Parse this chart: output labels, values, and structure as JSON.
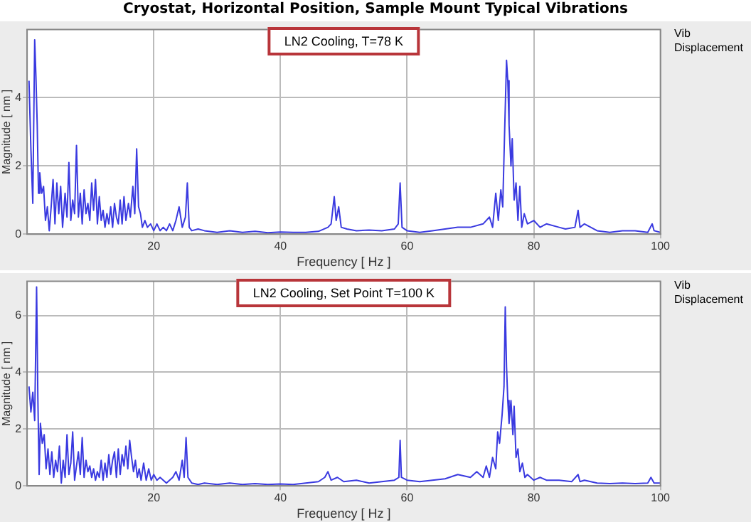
{
  "chart_data": [
    {
      "type": "line",
      "title": "Cryostat, Horizontal Position, Sample Mount Typical Vibrations",
      "subtitle": "LN2 Cooling, T=78 K",
      "xlabel": "Frequency [ Hz ]",
      "ylabel": "Magnitude [ nm ]",
      "annotations": [
        "Vib Displacement"
      ],
      "color": "#3a3ae0",
      "marker": "none",
      "grid": true,
      "legend": false,
      "xlim": [
        0,
        100
      ],
      "xticks": [
        20,
        40,
        60,
        80,
        100
      ],
      "ylim": [
        0,
        6
      ],
      "yticks": [
        0,
        2,
        4
      ],
      "x": [
        0.3,
        0.6,
        0.9,
        1.2,
        1.4,
        1.6,
        1.8,
        2.0,
        2.3,
        2.6,
        2.9,
        3.2,
        3.5,
        3.8,
        4.1,
        4.4,
        4.7,
        5.0,
        5.3,
        5.6,
        6.0,
        6.3,
        6.6,
        6.9,
        7.2,
        7.5,
        7.8,
        8.1,
        8.4,
        8.7,
        9.0,
        9.3,
        9.6,
        9.9,
        10.2,
        10.5,
        10.8,
        11.1,
        11.4,
        11.7,
        12.0,
        12.3,
        12.6,
        12.9,
        13.2,
        13.5,
        13.8,
        14.1,
        14.4,
        14.7,
        15.0,
        15.3,
        15.6,
        16.0,
        16.3,
        16.7,
        17.0,
        17.3,
        17.6,
        17.9,
        18.2,
        18.6,
        19.0,
        19.5,
        20,
        20.5,
        21,
        21.5,
        22,
        22.5,
        23,
        23.5,
        24,
        24.5,
        25.0,
        25.3,
        25.6,
        26,
        27,
        28,
        30,
        32,
        34,
        36,
        38,
        40,
        42,
        44,
        46,
        47.5,
        48,
        48.5,
        48.8,
        49.2,
        49.6,
        50.5,
        52,
        54,
        56,
        58,
        58.6,
        58.9,
        59.2,
        60,
        62,
        64,
        66,
        68,
        70,
        72,
        73,
        73.5,
        74,
        74.4,
        74.8,
        75.1,
        75.4,
        75.7,
        75.9,
        76.1,
        76.4,
        76.6,
        76.9,
        77.2,
        77.5,
        77.8,
        78.1,
        78.5,
        79,
        80,
        81,
        82,
        84,
        85,
        86.5,
        87,
        87.3,
        88,
        90,
        92,
        94,
        96,
        98,
        98.7,
        99,
        100
      ],
      "values": [
        4.5,
        2.5,
        0.9,
        5.7,
        4.6,
        3.2,
        1.2,
        1.8,
        1.2,
        1.4,
        0.4,
        0.8,
        0.1,
        0.8,
        1.6,
        0.3,
        1.5,
        0.6,
        1.4,
        0.2,
        1.2,
        0.5,
        2.1,
        0.4,
        1.0,
        0.6,
        2.6,
        0.5,
        1.2,
        0.3,
        1.3,
        0.6,
        0.9,
        0.4,
        1.5,
        0.7,
        1.6,
        0.3,
        1.1,
        0.4,
        0.7,
        0.2,
        0.6,
        0.3,
        0.8,
        0.2,
        0.9,
        0.5,
        0.3,
        1.0,
        0.3,
        1.1,
        0.4,
        0.9,
        0.5,
        1.4,
        0.6,
        2.5,
        0.8,
        0.6,
        0.2,
        0.4,
        0.2,
        0.3,
        0.1,
        0.3,
        0.1,
        0.2,
        0.1,
        0.3,
        0.1,
        0.4,
        0.8,
        0.2,
        0.5,
        1.5,
        0.2,
        0.1,
        0.15,
        0.1,
        0.05,
        0.1,
        0.05,
        0.08,
        0.04,
        0.06,
        0.05,
        0.05,
        0.08,
        0.2,
        0.3,
        1.1,
        0.4,
        0.8,
        0.2,
        0.15,
        0.1,
        0.12,
        0.1,
        0.15,
        0.3,
        1.5,
        0.2,
        0.1,
        0.05,
        0.1,
        0.15,
        0.2,
        0.2,
        0.3,
        0.5,
        0.2,
        1.2,
        0.4,
        1.3,
        0.8,
        3.0,
        5.1,
        4.5,
        3.2,
        2.0,
        2.8,
        1.0,
        1.5,
        0.4,
        1.4,
        0.2,
        0.6,
        0.3,
        0.4,
        0.2,
        0.3,
        0.2,
        0.15,
        0.2,
        0.7,
        0.2,
        0.3,
        0.1,
        0.05,
        0.1,
        0.1,
        0.05,
        0.3,
        0.1,
        0.05
      ]
    },
    {
      "type": "line",
      "subtitle": "LN2 Cooling, Set Point T=100 K",
      "xlabel": "Frequency [ Hz ]",
      "ylabel": "Magnitude [ nm ]",
      "annotations": [
        "Vib Displacement"
      ],
      "color": "#3a3ae0",
      "marker": "none",
      "grid": true,
      "legend": false,
      "xlim": [
        0,
        100
      ],
      "xticks": [
        20,
        40,
        60,
        80,
        100
      ],
      "ylim": [
        0,
        7.2
      ],
      "yticks": [
        0,
        2,
        4,
        6
      ],
      "x": [
        0.3,
        0.6,
        0.9,
        1.2,
        1.5,
        1.7,
        1.9,
        2.1,
        2.4,
        2.7,
        3.0,
        3.3,
        3.6,
        3.9,
        4.2,
        4.5,
        4.8,
        5.1,
        5.4,
        5.7,
        6.0,
        6.3,
        6.6,
        6.9,
        7.2,
        7.5,
        7.8,
        8.1,
        8.4,
        8.7,
        9.0,
        9.3,
        9.6,
        9.9,
        10.2,
        10.5,
        10.8,
        11.1,
        11.4,
        11.7,
        12.0,
        12.3,
        12.6,
        12.9,
        13.2,
        13.5,
        13.8,
        14.1,
        14.4,
        14.7,
        15.0,
        15.3,
        15.6,
        15.9,
        16.2,
        16.5,
        16.8,
        17.1,
        17.4,
        17.7,
        18.0,
        18.4,
        18.8,
        19.2,
        19.6,
        20,
        20.5,
        21,
        22,
        23,
        23.5,
        24,
        24.5,
        24.8,
        25.1,
        25.4,
        26,
        27,
        28,
        30,
        32,
        34,
        36,
        38,
        40,
        42,
        44,
        46,
        47,
        47.5,
        48,
        49,
        50,
        52,
        54,
        56,
        58,
        58.7,
        58.9,
        59.1,
        60,
        62,
        64,
        66,
        68,
        70,
        71,
        72,
        72.5,
        73,
        73.5,
        74,
        74.3,
        74.6,
        75,
        75.3,
        75.5,
        75.7,
        75.9,
        76.1,
        76.4,
        76.7,
        76.9,
        77.2,
        77.5,
        77.8,
        78.2,
        78.6,
        79,
        80,
        81,
        82,
        84,
        86,
        87,
        87.3,
        88,
        90,
        92,
        94,
        96,
        98,
        98.5,
        99,
        100
      ],
      "values": [
        3.5,
        2.6,
        3.3,
        2.3,
        7.0,
        3.1,
        0.4,
        2.2,
        1.5,
        1.8,
        0.6,
        1.3,
        0.4,
        1.2,
        0.3,
        0.9,
        0.5,
        1.4,
        0.1,
        0.9,
        0.3,
        1.8,
        0.4,
        0.8,
        1.9,
        0.2,
        0.7,
        1.2,
        0.4,
        1.7,
        0.3,
        0.9,
        0.5,
        0.7,
        0.3,
        0.6,
        0.2,
        0.5,
        0.3,
        0.9,
        0.2,
        0.8,
        0.3,
        1.1,
        0.4,
        0.9,
        1.2,
        0.3,
        1.3,
        0.4,
        1.1,
        0.7,
        1.4,
        0.6,
        1.6,
        1.0,
        0.5,
        0.9,
        0.3,
        0.6,
        0.2,
        0.8,
        0.2,
        0.6,
        0.2,
        0.4,
        0.2,
        0.3,
        0.1,
        0.3,
        0.5,
        0.2,
        0.9,
        0.3,
        1.7,
        0.3,
        0.1,
        0.05,
        0.1,
        0.05,
        0.1,
        0.05,
        0.08,
        0.05,
        0.07,
        0.05,
        0.1,
        0.15,
        0.3,
        0.5,
        0.2,
        0.3,
        0.15,
        0.2,
        0.1,
        0.15,
        0.2,
        0.3,
        1.6,
        0.3,
        0.2,
        0.15,
        0.2,
        0.25,
        0.4,
        0.3,
        0.5,
        0.3,
        0.7,
        0.3,
        1.0,
        0.6,
        1.9,
        1.5,
        2.5,
        3.5,
        6.3,
        4.2,
        3.0,
        2.2,
        3.0,
        1.8,
        2.8,
        1.0,
        1.3,
        0.5,
        0.8,
        0.3,
        0.4,
        0.2,
        0.3,
        0.2,
        0.2,
        0.15,
        0.4,
        0.15,
        0.2,
        0.1,
        0.08,
        0.1,
        0.08,
        0.1,
        0.3,
        0.1,
        0.1
      ]
    }
  ]
}
